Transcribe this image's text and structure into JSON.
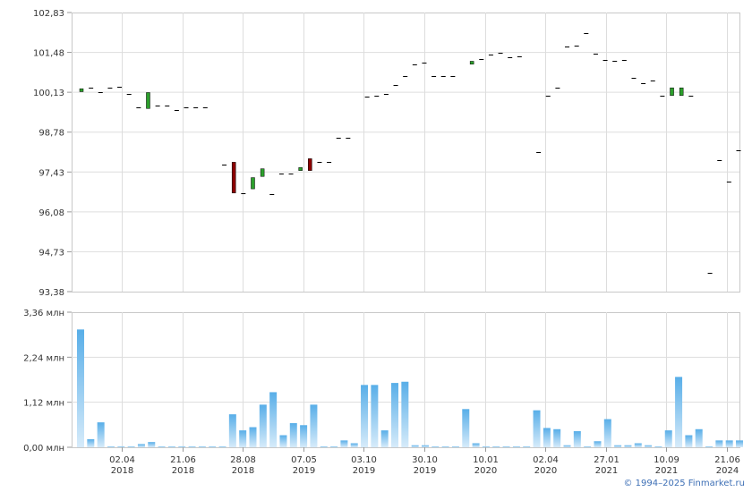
{
  "chart_data": [
    {
      "type": "candlestick",
      "ylim": [
        93.38,
        102.83
      ],
      "y_ticks": [
        "102,83",
        "101,48",
        "100,13",
        "98,78",
        "97,43",
        "96,08",
        "94,73",
        "93,38"
      ],
      "grid": true,
      "colors": {
        "up": "#2ca02c",
        "down": "#8b0000",
        "flat": "#000000"
      },
      "candles": [
        [
          100.15,
          100.25
        ],
        [
          100.28,
          100.28
        ],
        [
          100.12,
          100.12
        ],
        [
          100.28,
          100.28
        ],
        [
          100.32,
          100.32
        ],
        [
          100.08,
          100.08
        ],
        [
          99.62,
          99.62
        ],
        [
          99.58,
          100.12
        ],
        [
          99.68,
          99.68
        ],
        [
          99.68,
          99.68
        ],
        [
          99.52,
          99.52
        ],
        [
          99.62,
          99.62
        ],
        [
          99.62,
          99.62
        ],
        [
          99.62,
          99.62
        ],
        [
          null,
          null
        ],
        [
          97.68,
          97.68
        ],
        [
          97.76,
          96.72
        ],
        [
          96.72,
          96.72
        ],
        [
          96.86,
          97.24
        ],
        [
          97.28,
          97.54
        ],
        [
          96.68,
          96.68
        ],
        [
          97.38,
          97.38
        ],
        [
          97.38,
          97.38
        ],
        [
          97.48,
          97.58
        ],
        [
          97.88,
          97.48
        ],
        [
          97.76,
          97.76
        ],
        [
          97.78,
          97.78
        ],
        [
          98.58,
          98.58
        ],
        [
          98.58,
          98.58
        ],
        [
          null,
          null
        ],
        [
          99.98,
          99.98
        ],
        [
          100.02,
          100.02
        ],
        [
          100.08,
          100.08
        ],
        [
          100.38,
          100.38
        ],
        [
          100.68,
          100.68
        ],
        [
          101.08,
          101.08
        ],
        [
          101.12,
          101.12
        ],
        [
          100.68,
          100.68
        ],
        [
          100.68,
          100.68
        ],
        [
          100.68,
          100.68
        ],
        [
          null,
          null
        ],
        [
          101.08,
          101.18
        ],
        [
          101.25,
          101.25
        ],
        [
          101.42,
          101.42
        ],
        [
          101.48,
          101.48
        ],
        [
          101.32,
          101.32
        ],
        [
          101.35,
          101.35
        ],
        [
          null,
          null
        ],
        [
          98.12,
          98.12
        ],
        [
          100.02,
          100.02
        ],
        [
          100.28,
          100.28
        ],
        [
          101.68,
          101.68
        ],
        [
          101.72,
          101.72
        ],
        [
          102.12,
          102.12
        ],
        [
          101.45,
          101.45
        ],
        [
          101.22,
          101.22
        ],
        [
          101.18,
          101.18
        ],
        [
          101.22,
          101.22
        ],
        [
          100.62,
          100.62
        ],
        [
          100.45,
          100.45
        ],
        [
          100.52,
          100.52
        ],
        [
          100.02,
          100.02
        ],
        [
          100.02,
          100.28
        ],
        [
          100.02,
          100.28
        ],
        [
          100.02,
          100.02
        ],
        [
          null,
          null
        ],
        [
          94.02,
          94.02
        ],
        [
          97.82,
          97.82
        ],
        [
          97.12,
          97.12
        ],
        [
          98.16,
          98.16
        ]
      ]
    },
    {
      "type": "bar",
      "ylim": [
        0,
        3.36
      ],
      "y_ticks": [
        "3,36 млн",
        "2,24 млн",
        "1,12 млн",
        "0,00 млн"
      ],
      "grid": true,
      "x_ticks": [
        {
          "d": "02.04",
          "y": "2018"
        },
        {
          "d": "21.06",
          "y": "2018"
        },
        {
          "d": "28.08",
          "y": "2018"
        },
        {
          "d": "07.05",
          "y": "2019"
        },
        {
          "d": "03.10",
          "y": "2019"
        },
        {
          "d": "30.10",
          "y": "2019"
        },
        {
          "d": "10.01",
          "y": "2020"
        },
        {
          "d": "02.04",
          "y": "2020"
        },
        {
          "d": "27.01",
          "y": "2021"
        },
        {
          "d": "10.09",
          "y": "2021"
        },
        {
          "d": "21.06",
          "y": "2024"
        }
      ],
      "values": [
        2.93,
        0.2,
        0.62,
        0.02,
        0.02,
        0.02,
        0.08,
        0.13,
        0.02,
        0.02,
        0.02,
        0.02,
        0.02,
        0.02,
        0.02,
        0.82,
        0.42,
        0.5,
        1.06,
        1.37,
        0.3,
        0.6,
        0.55,
        1.06,
        0.02,
        0.02,
        0.17,
        0.1,
        1.55,
        1.55,
        0.42,
        1.6,
        1.63,
        0.05,
        0.05,
        0.02,
        0.02,
        0.02,
        0.95,
        0.1,
        0.02,
        0.02,
        0.02,
        0.02,
        0.02,
        0.92,
        0.48,
        0.45,
        0.05,
        0.4,
        0.02,
        0.15,
        0.7,
        0.05,
        0.05,
        0.1,
        0.05,
        0.02,
        0.42,
        1.75,
        0.3,
        0.45,
        0.02,
        0.17,
        0.17,
        0.17
      ]
    }
  ],
  "footer": {
    "copyright": "© 1994–2025 Finmarket.ru"
  }
}
